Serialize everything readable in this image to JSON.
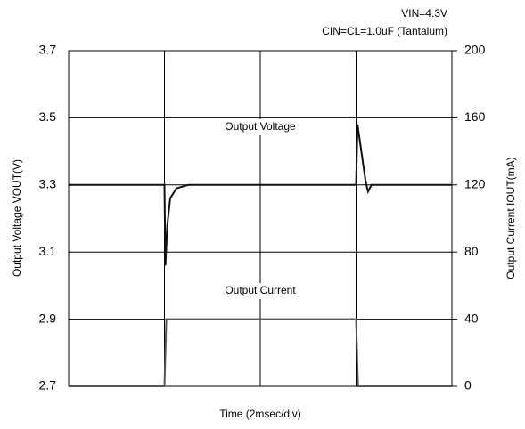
{
  "chart_data": {
    "type": "line",
    "annotations": [
      "VIN=4.3V",
      "CIN=CL=1.0uF (Tantalum)"
    ],
    "ylabel": "Output Voltage  VOUT(V)",
    "y2label": "Output Current  IOUT(mA)",
    "xlabel": "Time (2msec/div)",
    "xlim": [
      0,
      8
    ],
    "xticks": [
      0,
      2,
      4,
      6,
      8
    ],
    "ylim": [
      2.7,
      3.7
    ],
    "yticks": [
      2.7,
      2.9,
      3.1,
      3.3,
      3.5,
      3.7
    ],
    "y2lim": [
      0,
      200
    ],
    "y2ticks": [
      0,
      40,
      80,
      120,
      160,
      200
    ],
    "grid": true,
    "series": [
      {
        "name": "Output Voltage",
        "color": "#111111",
        "x": [
          0,
          2.0,
          2.02,
          2.06,
          2.12,
          2.25,
          2.5,
          6.0,
          6.03,
          6.2,
          6.25,
          6.32,
          8
        ],
        "values": [
          3.3,
          3.3,
          3.06,
          3.18,
          3.26,
          3.29,
          3.3,
          3.3,
          3.48,
          3.31,
          3.28,
          3.3,
          3.3
        ]
      },
      {
        "name": "Output Current",
        "color": "#555555",
        "axis": "y2",
        "x": [
          0,
          2.0,
          2.04,
          6.0,
          6.04,
          8
        ],
        "values": [
          0,
          0,
          40,
          40,
          0,
          0
        ]
      }
    ]
  }
}
